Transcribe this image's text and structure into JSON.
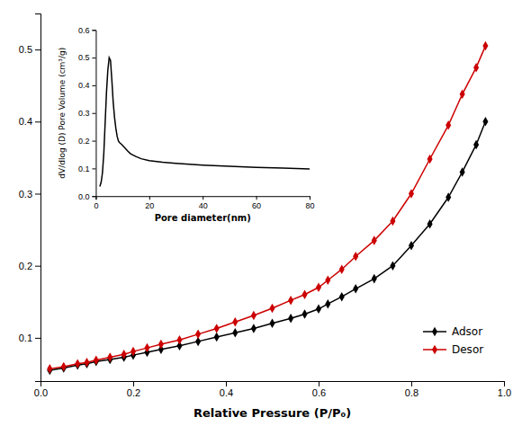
{
  "chart_data": [
    {
      "type": "line",
      "xlabel": "Relative Pressure (P/P₀)",
      "xlim": [
        0.0,
        1.0
      ],
      "ylim": [
        0.04,
        0.55
      ],
      "xticks": [
        {
          "value": 0,
          "label": "0.0"
        },
        0.2,
        0.4,
        0.6,
        0.8,
        {
          "value": 1,
          "label": "1.0"
        }
      ],
      "yticks": [
        0.1,
        0.2,
        0.3,
        0.4,
        0.5
      ],
      "legend": "lower right",
      "x": [
        0.02,
        0.05,
        0.08,
        0.1,
        0.12,
        0.15,
        0.18,
        0.2,
        0.23,
        0.26,
        0.3,
        0.34,
        0.38,
        0.42,
        0.46,
        0.5,
        0.54,
        0.57,
        0.6,
        0.62,
        0.65,
        0.68,
        0.72,
        0.76,
        0.8,
        0.84,
        0.88,
        0.91,
        0.94,
        0.96
      ],
      "series": [
        {
          "name": "Adsor",
          "color": "#000000",
          "marker": "diamond",
          "values": [
            0.055,
            0.058,
            0.062,
            0.064,
            0.067,
            0.07,
            0.073,
            0.076,
            0.08,
            0.084,
            0.089,
            0.095,
            0.101,
            0.107,
            0.113,
            0.12,
            0.127,
            0.133,
            0.14,
            0.147,
            0.157,
            0.168,
            0.182,
            0.2,
            0.228,
            0.258,
            0.295,
            0.33,
            0.368,
            0.4
          ]
        },
        {
          "name": "Desor",
          "color": "#cc0000",
          "marker": "diamond",
          "values": [
            0.057,
            0.06,
            0.064,
            0.066,
            0.069,
            0.073,
            0.077,
            0.081,
            0.086,
            0.091,
            0.097,
            0.105,
            0.113,
            0.122,
            0.131,
            0.141,
            0.152,
            0.16,
            0.17,
            0.18,
            0.195,
            0.213,
            0.235,
            0.262,
            0.3,
            0.348,
            0.395,
            0.438,
            0.475,
            0.505
          ]
        }
      ]
    },
    {
      "type": "line",
      "xlabel": "Pore diameter(nm)",
      "ylabel": "dV/dlog (D) Pore Volume (cm³/g)",
      "xlim": [
        0,
        80
      ],
      "ylim": [
        0.0,
        0.6
      ],
      "xticks": [
        0,
        20,
        40,
        60,
        80
      ],
      "yticks": [
        {
          "value": 0,
          "label": "0.0"
        },
        0.1,
        0.2,
        0.3,
        0.4,
        0.5,
        0.6
      ],
      "color": "#000000",
      "x": [
        1.5,
        2.0,
        2.5,
        3.0,
        3.5,
        4.0,
        4.5,
        5.0,
        5.5,
        6.0,
        6.5,
        7.0,
        7.5,
        8.0,
        8.5,
        9.0,
        9.5,
        10.0,
        11.0,
        12.0,
        13.0,
        15.0,
        17.0,
        20.0,
        25.0,
        30.0,
        40.0,
        50.0,
        60.0,
        70.0,
        80.0
      ],
      "values": [
        0.035,
        0.05,
        0.085,
        0.155,
        0.265,
        0.375,
        0.455,
        0.5,
        0.49,
        0.42,
        0.34,
        0.285,
        0.245,
        0.215,
        0.198,
        0.192,
        0.188,
        0.183,
        0.173,
        0.162,
        0.153,
        0.143,
        0.135,
        0.128,
        0.122,
        0.118,
        0.112,
        0.108,
        0.104,
        0.101,
        0.098
      ]
    }
  ]
}
